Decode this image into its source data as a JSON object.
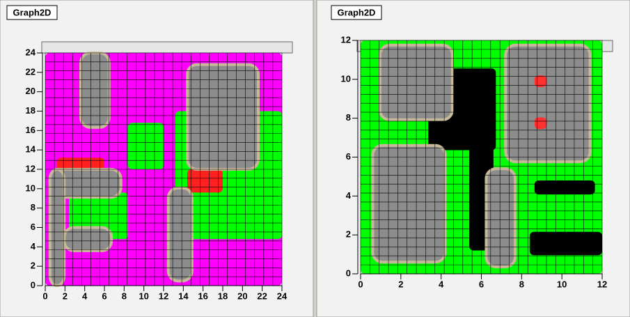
{
  "chart_data": [
    {
      "type": "surface",
      "title": "Graph2D",
      "xlim": [
        0,
        24
      ],
      "ylim": [
        0,
        24
      ],
      "xticks": [
        0,
        2,
        4,
        6,
        8,
        10,
        12,
        14,
        16,
        18,
        20,
        22,
        24
      ],
      "yticks": [
        0,
        2,
        4,
        6,
        8,
        10,
        12,
        14,
        16,
        18,
        20,
        22,
        24
      ]
    },
    {
      "type": "surface",
      "title": "Graph2D",
      "xlim": [
        0,
        12
      ],
      "ylim": [
        0,
        12
      ],
      "xticks": [
        0,
        2,
        4,
        6,
        8,
        10,
        12
      ],
      "yticks": [
        0,
        2,
        4,
        6,
        8,
        10,
        12
      ]
    }
  ]
}
